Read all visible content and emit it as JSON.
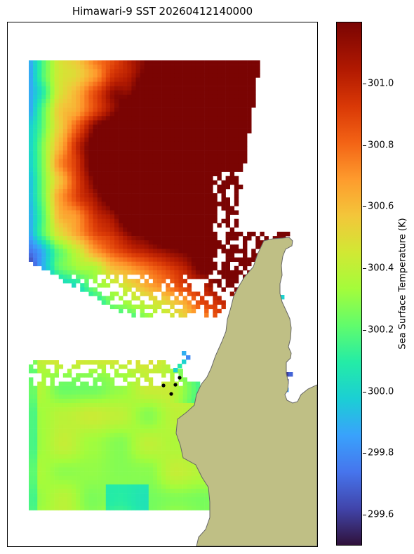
{
  "title": "Himawari-9 SST 20260412140000",
  "colorbar": {
    "label": "Sea Surface Temperature (K)",
    "min": 299.5,
    "max": 301.2,
    "ticks": [
      "299.6",
      "299.8",
      "300.0",
      "300.2",
      "300.4",
      "300.6",
      "300.8",
      "301.0"
    ],
    "colors": [
      "#30123b",
      "#4145ab",
      "#4675ed",
      "#39a2fc",
      "#1bcfd4",
      "#24eca6",
      "#61fc6c",
      "#a4fc3b",
      "#d1e834",
      "#f3c63a",
      "#fe9b2d",
      "#f36315",
      "#d93806",
      "#b11901",
      "#7a0403"
    ]
  },
  "land_color": "#bfbf85",
  "coast_color": "#666666",
  "markers": {
    "count": 4,
    "color": "#000000"
  }
}
